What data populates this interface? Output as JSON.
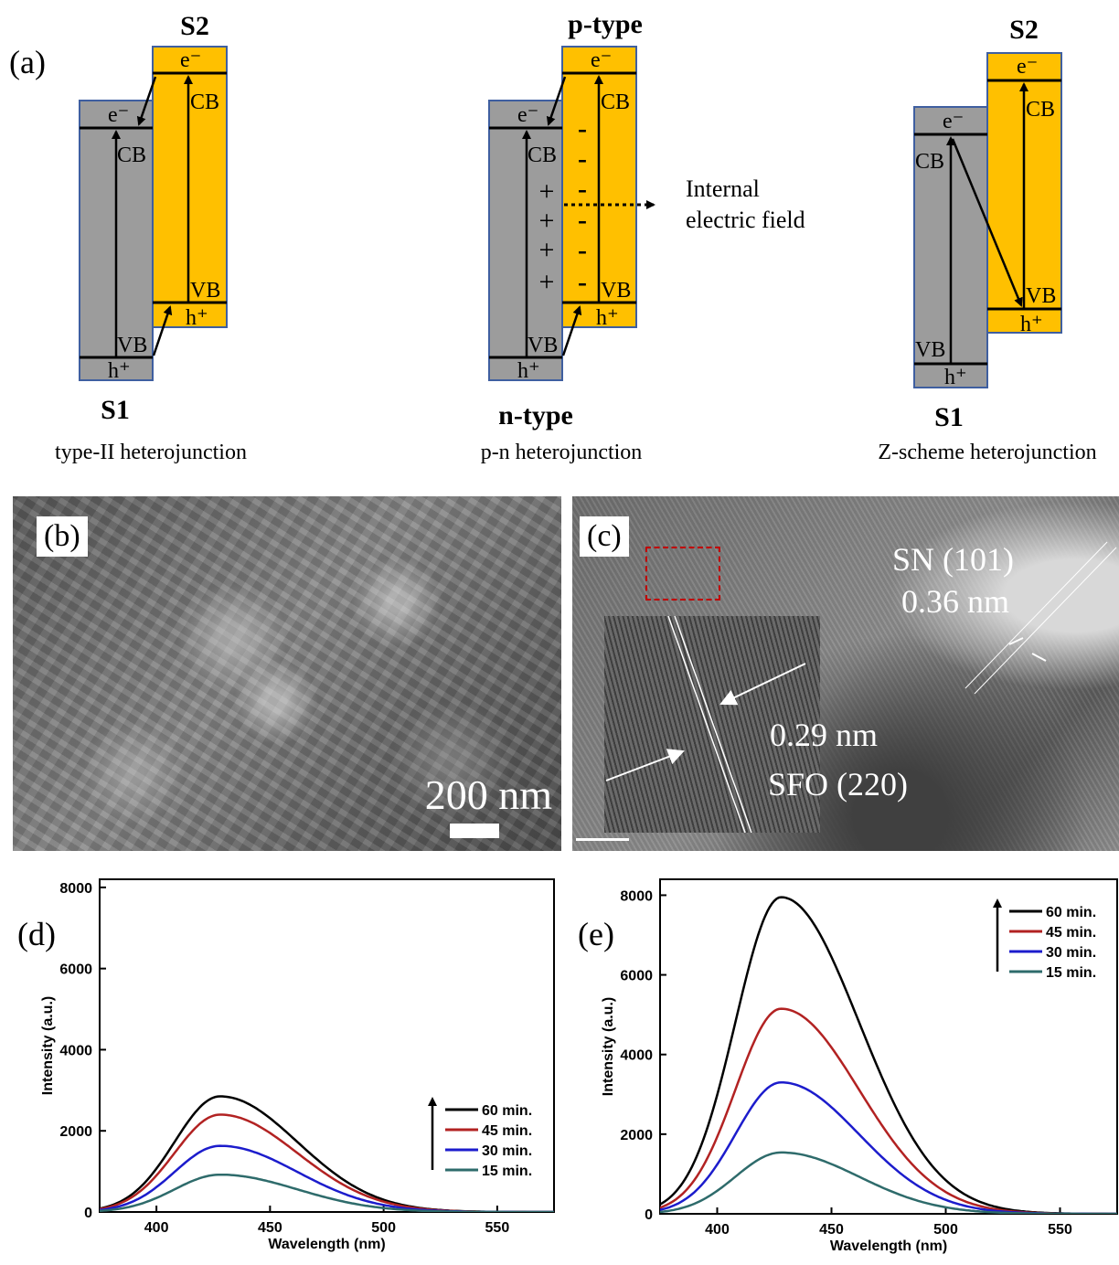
{
  "panel_a": {
    "label": "(a)",
    "band_labels": {
      "e": "e⁻",
      "h": "h⁺",
      "cb": "CB",
      "vb": "VB"
    },
    "diagrams": [
      {
        "top_label": "S2",
        "bottom_label": "S1",
        "caption": "type-II heterojunction"
      },
      {
        "top_label": "p-type",
        "bottom_label": "n-type",
        "caption": "p-n heterojunction",
        "plus": "+",
        "minus": "-",
        "field_label_1": "Internal",
        "field_label_2": "electric field"
      },
      {
        "top_label": "S2",
        "bottom_label": "S1",
        "caption": "Z-scheme heterojunction"
      }
    ],
    "colors": {
      "s1": "#9c9c9c",
      "s2": "#ffc000",
      "border": "#3f5fa0"
    }
  },
  "panel_b": {
    "label": "(b)",
    "scale_text": "200 nm"
  },
  "panel_c": {
    "label": "(c)",
    "sn_label": "SN (101)",
    "sn_spacing": "0.36 nm",
    "sfo_spacing": "0.29 nm",
    "sfo_label": "SFO (220)"
  },
  "chart_data": [
    {
      "type": "line",
      "label": "(d)",
      "xlabel": "Wavelength (nm)",
      "ylabel": "Intensity (a.u.)",
      "xlim": [
        375,
        575
      ],
      "ylim": [
        0,
        8200
      ],
      "xticks": [
        400,
        450,
        500,
        550
      ],
      "yticks": [
        0,
        2000,
        4000,
        6000,
        8000
      ],
      "legend_position": "lower-right",
      "peak_x": 428,
      "series": [
        {
          "name": "60 min.",
          "color": "#000000",
          "peak": 2850
        },
        {
          "name": "45 min.",
          "color": "#b22222",
          "peak": 2400
        },
        {
          "name": "30 min.",
          "color": "#1c1ccc",
          "peak": 1630
        },
        {
          "name": "15 min.",
          "color": "#2e6b6b",
          "peak": 920
        }
      ]
    },
    {
      "type": "line",
      "label": "(e)",
      "xlabel": "Wavelength (nm)",
      "ylabel": "Intensity (a.u.)",
      "xlim": [
        375,
        575
      ],
      "ylim": [
        0,
        8400
      ],
      "xticks": [
        400,
        450,
        500,
        550
      ],
      "yticks": [
        0,
        2000,
        4000,
        6000,
        8000
      ],
      "legend_position": "top-right",
      "peak_x": 428,
      "series": [
        {
          "name": "60 min.",
          "color": "#000000",
          "peak": 7950
        },
        {
          "name": "45 min.",
          "color": "#b22222",
          "peak": 5150
        },
        {
          "name": "30 min.",
          "color": "#1c1ccc",
          "peak": 3300
        },
        {
          "name": "15 min.",
          "color": "#2e6b6b",
          "peak": 1540
        }
      ]
    }
  ]
}
